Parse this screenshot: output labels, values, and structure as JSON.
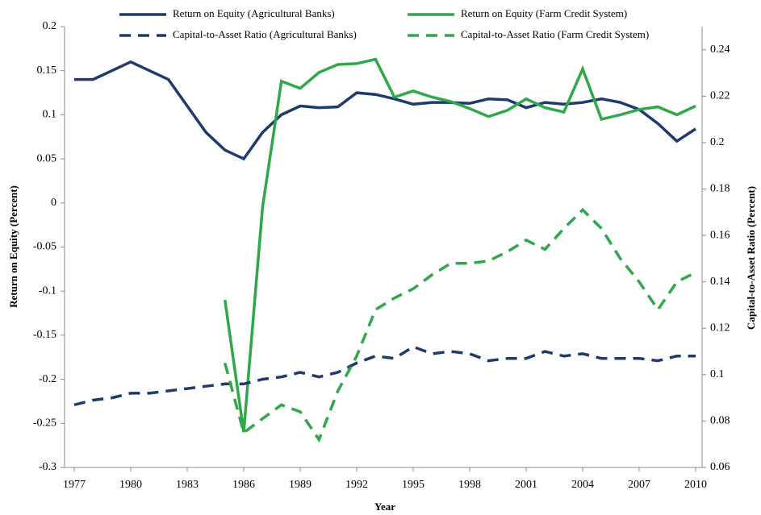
{
  "chart_data": {
    "type": "line",
    "y_label": "Return on Equity (Percent)",
    "y2_label": "Capital-to-Asset Ratio (Percent)",
    "x_label": "Year",
    "x": [
      1977,
      1978,
      1979,
      1980,
      1981,
      1982,
      1983,
      1984,
      1985,
      1986,
      1987,
      1988,
      1989,
      1990,
      1991,
      1992,
      1993,
      1994,
      1995,
      1996,
      1997,
      1998,
      1999,
      2000,
      2001,
      2002,
      2003,
      2004,
      2005,
      2006,
      2007,
      2008,
      2009,
      2010
    ],
    "series": [
      {
        "name": "Return on Equity (Agricultural Banks)",
        "color": "#1f3b6e",
        "line_style": "solid",
        "values": [
          0.14,
          0.14,
          0.15,
          0.16,
          0.15,
          0.14,
          0.11,
          0.08,
          0.06,
          0.05,
          0.08,
          0.1,
          0.11,
          0.108,
          0.109,
          0.125,
          0.123,
          0.118,
          0.112,
          0.114,
          0.114,
          0.113,
          0.118,
          0.117,
          0.108,
          0.114,
          0.112,
          0.114,
          0.118,
          0.114,
          0.106,
          0.09,
          0.07,
          0.084
        ]
      },
      {
        "name": "Return on Equity (Farm Credit System)",
        "color": "#2fa84a",
        "line_style": "solid",
        "values": [
          null,
          null,
          null,
          null,
          null,
          null,
          null,
          null,
          -0.11,
          -0.26,
          -0.005,
          0.138,
          0.13,
          0.148,
          0.157,
          0.158,
          0.163,
          0.12,
          0.127,
          0.12,
          0.115,
          0.107,
          0.098,
          0.105,
          0.118,
          0.108,
          0.103,
          0.152,
          0.095,
          0.1,
          0.106,
          0.109,
          0.1,
          0.11
        ]
      },
      {
        "name": "Capital-to-Asset Ratio (Agricultural Banks)",
        "color": "#1f3b6e",
        "line_style": "dashed",
        "axis": "y2",
        "values": [
          0.087,
          0.089,
          0.09,
          0.092,
          0.092,
          0.093,
          0.094,
          0.095,
          0.096,
          0.096,
          0.098,
          0.099,
          0.101,
          0.099,
          0.101,
          0.105,
          0.108,
          0.107,
          0.112,
          0.109,
          0.11,
          0.109,
          0.106,
          0.107,
          0.107,
          0.11,
          0.108,
          0.109,
          0.107,
          0.107,
          0.107,
          0.106,
          0.108,
          0.108
        ]
      },
      {
        "name": "Capital-to-Asset Ratio (Farm Credit System)",
        "color": "#2fa84a",
        "line_style": "dashed",
        "axis": "y2",
        "values": [
          null,
          null,
          null,
          null,
          null,
          null,
          null,
          null,
          0.105,
          0.075,
          0.081,
          0.087,
          0.084,
          0.072,
          0.093,
          0.108,
          0.128,
          0.133,
          0.137,
          0.143,
          0.148,
          0.148,
          0.149,
          0.153,
          0.158,
          0.154,
          0.163,
          0.171,
          0.163,
          0.15,
          0.14,
          0.128,
          0.14,
          0.144
        ]
      }
    ],
    "xlim": [
      1977,
      2010
    ],
    "xticks": [
      1977,
      1980,
      1983,
      1986,
      1989,
      1992,
      1995,
      1998,
      2001,
      2004,
      2007,
      2010
    ],
    "ylim": [
      -0.3,
      0.2
    ],
    "yticks": [
      0.2,
      0.15,
      0.1,
      0.05,
      0,
      -0.05,
      -0.1,
      -0.15,
      -0.2,
      -0.25,
      -0.3
    ],
    "y2lim": [
      0.06,
      0.25
    ],
    "y2ticks": [
      0.24,
      0.22,
      0.2,
      0.18,
      0.16,
      0.14,
      0.12,
      0.1,
      0.08,
      0.06
    ],
    "legend": "top"
  }
}
